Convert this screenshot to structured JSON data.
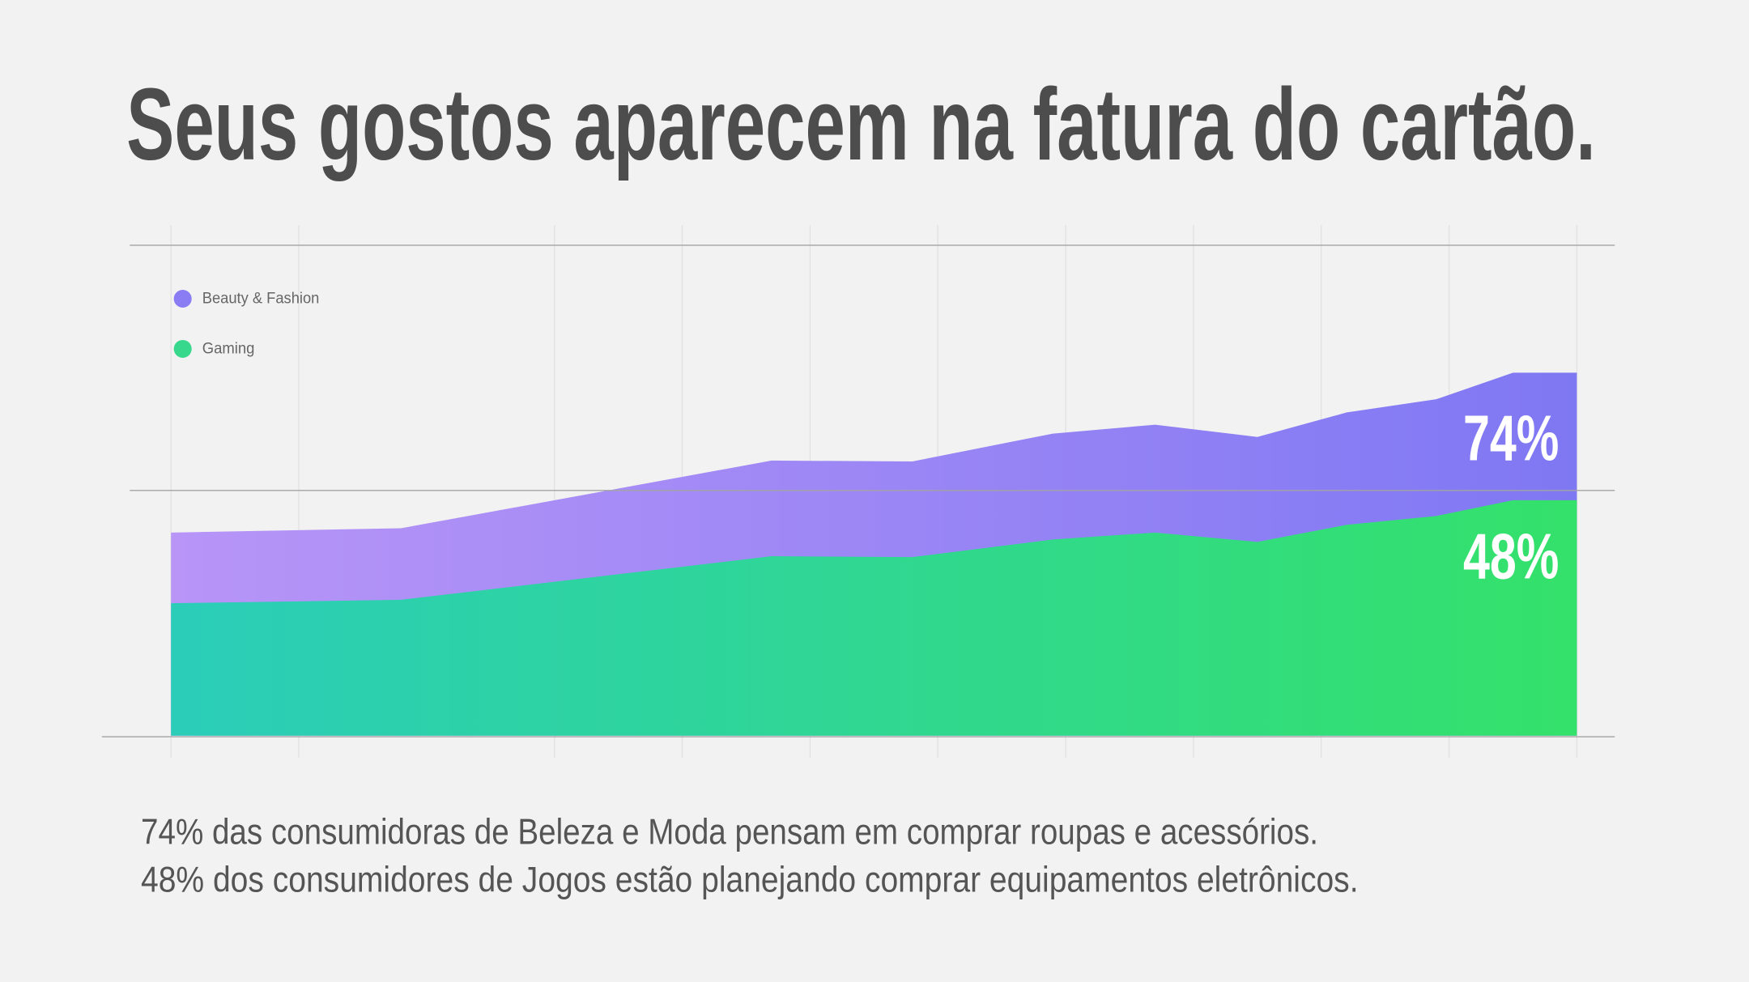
{
  "page": {
    "background": "#f2f2f2",
    "title_color": "#4d4d4d",
    "text_color": "#555555"
  },
  "title": "Seus gostos aparecem na fatura do cartão.",
  "chart_data": {
    "type": "area",
    "stacked": false,
    "xlim": [
      0,
      11
    ],
    "ylim": [
      0,
      100
    ],
    "y_gridlines": [
      0,
      50,
      100
    ],
    "grid": true,
    "legend_position": "top-left",
    "series": [
      {
        "name": "Beauty & Fashion",
        "legend_color": "#8a7df4",
        "gradient": [
          "#b895f7",
          "#7f78f3"
        ],
        "end_label": "74%",
        "x": [
          0,
          1.8,
          4.7,
          5.8,
          6.9,
          7.7,
          8.5,
          9.2,
          9.9,
          10.5,
          11
        ],
        "values": [
          41.4,
          42.3,
          56.1,
          55.9,
          61.6,
          63.4,
          60.9,
          65.9,
          68.6,
          74,
          74
        ]
      },
      {
        "name": "Gaming",
        "legend_color": "#37d88c",
        "gradient": [
          "#2bcdb9",
          "#34e16a"
        ],
        "end_label": "48%",
        "x": [
          0,
          1.8,
          4.7,
          5.8,
          6.9,
          7.7,
          8.5,
          9.2,
          9.9,
          10.5,
          11
        ],
        "values": [
          27.0,
          27.7,
          36.6,
          36.4,
          40.0,
          41.4,
          39.5,
          43.0,
          44.8,
          48,
          48
        ]
      }
    ]
  },
  "caption": {
    "lines": [
      "74% das consumidoras de Beleza e Moda pensam em comprar roupas e acessórios.",
      "48% dos consumidores de Jogos estão planejando comprar equipamentos eletrônicos."
    ]
  }
}
